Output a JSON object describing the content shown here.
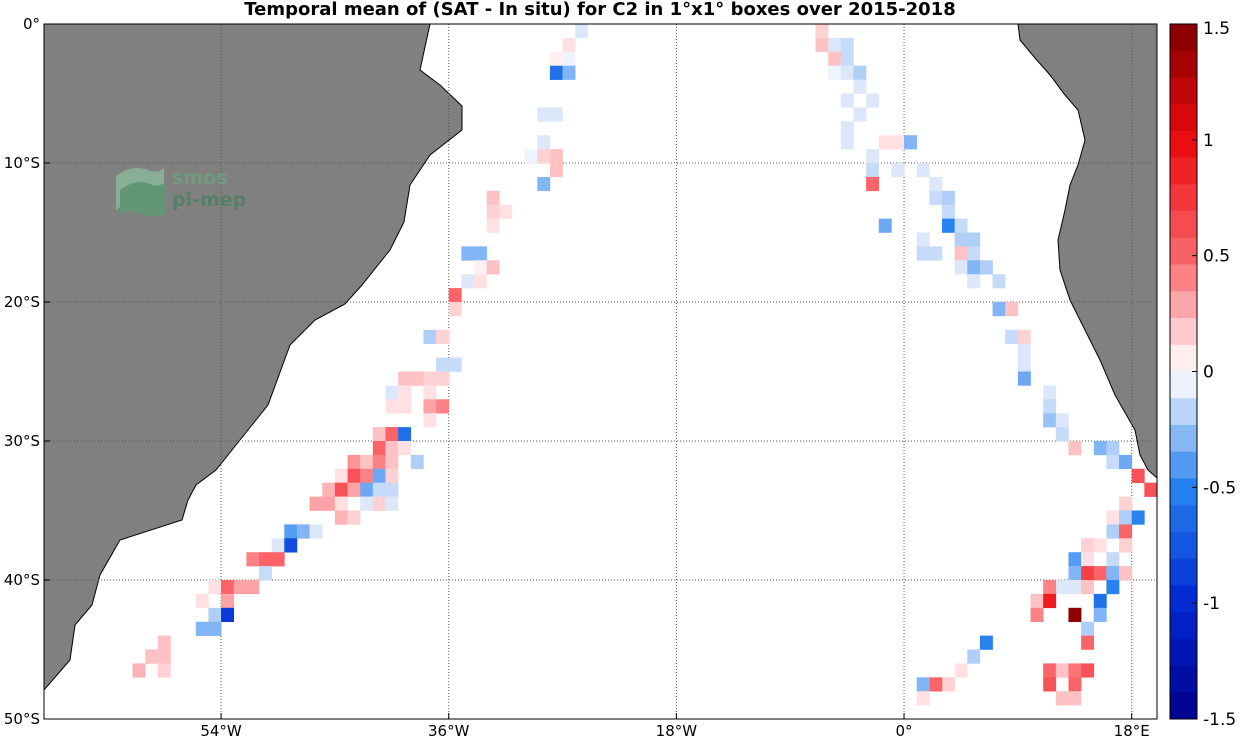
{
  "title": "Temporal mean of (SAT - In situ) for C2 in 1°x1° boxes over 2015-2018",
  "map": {
    "lon_range": [
      -68,
      20
    ],
    "lat_range": [
      -50,
      0
    ],
    "lon_ticks": [
      {
        "value": -54,
        "label": "54°W"
      },
      {
        "value": -36,
        "label": "36°W"
      },
      {
        "value": -18,
        "label": "18°W"
      },
      {
        "value": 0,
        "label": "0°"
      },
      {
        "value": 18,
        "label": "18°E"
      }
    ],
    "lat_ticks": [
      {
        "value": 0,
        "label": "0°"
      },
      {
        "value": -10,
        "label": "10°S"
      },
      {
        "value": -20,
        "label": "20°S"
      },
      {
        "value": -30,
        "label": "30°S"
      },
      {
        "value": -40,
        "label": "40°S"
      },
      {
        "value": -50,
        "label": "50°S"
      }
    ],
    "grid": "dotted",
    "land_color": "#808080"
  },
  "logo": {
    "line1": "smos",
    "line2": "pi-mep"
  },
  "colorbar": {
    "range": [
      -1.5,
      1.5
    ],
    "ticks": [
      {
        "value": 1.5,
        "label": "1.5"
      },
      {
        "value": 1,
        "label": "1"
      },
      {
        "value": 0.5,
        "label": "0.5"
      },
      {
        "value": 0,
        "label": "0"
      },
      {
        "value": -0.5,
        "label": "-0.5"
      },
      {
        "value": -1,
        "label": "-1"
      },
      {
        "value": -1.5,
        "label": "-1.5"
      }
    ]
  },
  "chart_data": {
    "type": "heatmap",
    "title": "Temporal mean of (SAT - In situ) for C2 in 1°x1° boxes over 2015-2018",
    "colorbar_range": [
      -1.5,
      1.5
    ],
    "cells": [
      [
        -26.5,
        -1.5,
        0.1
      ],
      [
        -25.5,
        -0.5,
        -0.1
      ],
      [
        -27.5,
        -2.5,
        0.05
      ],
      [
        -26.5,
        -2.5,
        -0.05
      ],
      [
        -27.5,
        -3.5,
        -0.6
      ],
      [
        -26.5,
        -3.5,
        -0.3
      ],
      [
        -28.5,
        -6.5,
        -0.1
      ],
      [
        -27.5,
        -6.5,
        -0.1
      ],
      [
        -28.5,
        -8.5,
        -0.1
      ],
      [
        -29.5,
        -9.5,
        -0.05
      ],
      [
        -28.5,
        -9.5,
        0.15
      ],
      [
        -27.5,
        -9.5,
        0.2
      ],
      [
        -27.5,
        -10.5,
        0.2
      ],
      [
        -28.5,
        -11.5,
        -0.3
      ],
      [
        -32.5,
        -12.5,
        0.2
      ],
      [
        -32.5,
        -13.5,
        0.15
      ],
      [
        -31.5,
        -13.5,
        0.1
      ],
      [
        -32.5,
        -14.5,
        0.1
      ],
      [
        -34.5,
        -16.5,
        -0.3
      ],
      [
        -33.5,
        -16.5,
        -0.3
      ],
      [
        -33.5,
        -17.5,
        0.05
      ],
      [
        -32.5,
        -17.5,
        0.2
      ],
      [
        -34.5,
        -18.5,
        -0.1
      ],
      [
        -33.5,
        -18.5,
        0.1
      ],
      [
        -35.5,
        -19.5,
        0.5
      ],
      [
        -35.5,
        -20.5,
        0.15
      ],
      [
        -37.5,
        -22.5,
        -0.2
      ],
      [
        -36.5,
        -22.5,
        0.15
      ],
      [
        -36.5,
        -24.5,
        -0.15
      ],
      [
        -35.5,
        -24.5,
        -0.15
      ],
      [
        -39.5,
        -25.5,
        0.2
      ],
      [
        -38.5,
        -25.5,
        0.2
      ],
      [
        -37.5,
        -25.5,
        0.15
      ],
      [
        -36.5,
        -25.5,
        0.15
      ],
      [
        -40.5,
        -26.5,
        -0.1
      ],
      [
        -39.5,
        -26.5,
        0.1
      ],
      [
        -40.5,
        -27.5,
        0.1
      ],
      [
        -39.5,
        -27.5,
        0.1
      ],
      [
        -37.5,
        -26.5,
        0.1
      ],
      [
        -37.5,
        -27.5,
        0.3
      ],
      [
        -36.5,
        -27.5,
        0.4
      ],
      [
        -37.5,
        -28.5,
        0.1
      ],
      [
        -41.5,
        -29.5,
        0.2
      ],
      [
        -40.5,
        -29.5,
        0.5
      ],
      [
        -39.5,
        -29.5,
        -0.6
      ],
      [
        -41.5,
        -30.5,
        0.5
      ],
      [
        -40.5,
        -30.5,
        0.2
      ],
      [
        -39.5,
        -30.5,
        0.1
      ],
      [
        -43.5,
        -31.5,
        0.35
      ],
      [
        -42.5,
        -31.5,
        0.2
      ],
      [
        -41.5,
        -31.5,
        0.4
      ],
      [
        -40.5,
        -31.5,
        0.2
      ],
      [
        -38.5,
        -31.5,
        -0.2
      ],
      [
        -44.5,
        -32.5,
        0.1
      ],
      [
        -43.5,
        -32.5,
        0.6
      ],
      [
        -42.5,
        -32.5,
        0.4
      ],
      [
        -41.5,
        -32.5,
        -0.35
      ],
      [
        -40.5,
        -32.5,
        0.15
      ],
      [
        -45.5,
        -33.5,
        0.25
      ],
      [
        -44.5,
        -33.5,
        0.6
      ],
      [
        -43.5,
        -33.5,
        0.3
      ],
      [
        -42.5,
        -33.5,
        -0.35
      ],
      [
        -41.5,
        -33.5,
        -0.15
      ],
      [
        -40.5,
        -33.5,
        -0.15
      ],
      [
        -46.5,
        -34.5,
        0.3
      ],
      [
        -45.5,
        -34.5,
        0.3
      ],
      [
        -44.5,
        -34.5,
        0.1
      ],
      [
        -42.5,
        -34.5,
        -0.1
      ],
      [
        -41.5,
        -34.5,
        0.15
      ],
      [
        -40.5,
        -34.5,
        -0.1
      ],
      [
        -44.5,
        -35.5,
        0.25
      ],
      [
        -43.5,
        -35.5,
        0.15
      ],
      [
        -48.5,
        -36.5,
        -0.4
      ],
      [
        -47.5,
        -36.5,
        -0.3
      ],
      [
        -46.5,
        -36.5,
        -0.1
      ],
      [
        -49.5,
        -37.5,
        -0.1
      ],
      [
        -48.5,
        -37.5,
        -0.8
      ],
      [
        -51.5,
        -38.5,
        0.4
      ],
      [
        -50.5,
        -38.5,
        0.5
      ],
      [
        -49.5,
        -38.5,
        0.5
      ],
      [
        -50.5,
        -39.5,
        -0.15
      ],
      [
        -54.5,
        -40.5,
        0.1
      ],
      [
        -53.5,
        -40.5,
        0.5
      ],
      [
        -52.5,
        -40.5,
        0.3
      ],
      [
        -51.5,
        -40.5,
        0.3
      ],
      [
        -55.5,
        -41.5,
        0.1
      ],
      [
        -53.5,
        -41.5,
        0.3
      ],
      [
        -54.5,
        -42.5,
        -0.2
      ],
      [
        -53.5,
        -42.5,
        -0.9
      ],
      [
        -55.5,
        -43.5,
        -0.3
      ],
      [
        -54.5,
        -43.5,
        -0.3
      ],
      [
        -58.5,
        -44.5,
        0.2
      ],
      [
        -58.5,
        -45.5,
        0.2
      ],
      [
        -59.5,
        -45.5,
        0.2
      ],
      [
        -58.5,
        -46.5,
        0.15
      ],
      [
        -60.5,
        -46.5,
        0.25
      ],
      [
        -6.5,
        -0.5,
        0.15
      ],
      [
        -6.5,
        -1.5,
        0.2
      ],
      [
        -5.5,
        -1.5,
        -0.1
      ],
      [
        -4.5,
        -1.5,
        -0.15
      ],
      [
        -5.5,
        -2.5,
        0.2
      ],
      [
        -4.5,
        -2.5,
        -0.15
      ],
      [
        -5.5,
        -3.5,
        -0.05
      ],
      [
        -4.5,
        -3.5,
        -0.1
      ],
      [
        -3.5,
        -3.5,
        -0.2
      ],
      [
        -3.5,
        -4.5,
        -0.1
      ],
      [
        -2.5,
        -5.5,
        -0.1
      ],
      [
        -4.5,
        -5.5,
        -0.1
      ],
      [
        -3.5,
        -6.5,
        -0.1
      ],
      [
        -4.5,
        -7.5,
        -0.1
      ],
      [
        -4.5,
        -8.5,
        -0.1
      ],
      [
        -0.5,
        -8.5,
        0.1
      ],
      [
        -1.5,
        -8.5,
        0.1
      ],
      [
        0.5,
        -8.5,
        -0.3
      ],
      [
        -2.5,
        -9.5,
        -0.1
      ],
      [
        -2.5,
        -10.5,
        -0.15
      ],
      [
        -2.5,
        -11.5,
        0.5
      ],
      [
        -0.5,
        -10.5,
        -0.1
      ],
      [
        1.5,
        -10.5,
        -0.1
      ],
      [
        2.5,
        -11.5,
        -0.1
      ],
      [
        2.5,
        -12.5,
        -0.15
      ],
      [
        3.5,
        -12.5,
        -0.2
      ],
      [
        -1.5,
        -14.5,
        -0.35
      ],
      [
        3.5,
        -13.5,
        -0.15
      ],
      [
        3.5,
        -14.5,
        -0.5
      ],
      [
        4.5,
        -14.5,
        -0.15
      ],
      [
        4.5,
        -15.5,
        -0.2
      ],
      [
        5.5,
        -15.5,
        -0.2
      ],
      [
        1.5,
        -15.5,
        -0.1
      ],
      [
        1.5,
        -16.5,
        -0.15
      ],
      [
        2.5,
        -16.5,
        -0.15
      ],
      [
        4.5,
        -16.5,
        0.2
      ],
      [
        5.5,
        -16.5,
        -0.15
      ],
      [
        4.5,
        -17.5,
        -0.1
      ],
      [
        5.5,
        -17.5,
        -0.3
      ],
      [
        5.5,
        -18.5,
        -0.1
      ],
      [
        6.5,
        -17.5,
        -0.2
      ],
      [
        7.5,
        -18.5,
        -0.15
      ],
      [
        7.5,
        -20.5,
        -0.3
      ],
      [
        8.5,
        -20.5,
        0.2
      ],
      [
        8.5,
        -22.5,
        -0.15
      ],
      [
        9.5,
        -22.5,
        0.15
      ],
      [
        9.5,
        -23.5,
        -0.1
      ],
      [
        9.5,
        -24.5,
        -0.1
      ],
      [
        9.5,
        -25.5,
        -0.35
      ],
      [
        11.5,
        -26.5,
        -0.1
      ],
      [
        11.5,
        -27.5,
        -0.15
      ],
      [
        11.5,
        -28.5,
        -0.25
      ],
      [
        12.5,
        -28.5,
        -0.1
      ],
      [
        12.5,
        -29.5,
        -0.15
      ],
      [
        13.5,
        -30.5,
        0.2
      ],
      [
        15.5,
        -30.5,
        -0.3
      ],
      [
        16.5,
        -30.5,
        -0.2
      ],
      [
        16.5,
        -31.5,
        -0.15
      ],
      [
        17.5,
        -31.5,
        -0.35
      ],
      [
        18.5,
        -32.5,
        0.6
      ],
      [
        19.5,
        -33.5,
        0.6
      ],
      [
        17.5,
        -34.5,
        0.15
      ],
      [
        16.5,
        -35.5,
        0.1
      ],
      [
        17.5,
        -35.5,
        -0.2
      ],
      [
        18.5,
        -35.5,
        -0.5
      ],
      [
        16.5,
        -36.5,
        -0.2
      ],
      [
        17.5,
        -36.5,
        0.5
      ],
      [
        14.5,
        -37.5,
        0.15
      ],
      [
        15.5,
        -37.5,
        0.1
      ],
      [
        17.5,
        -37.5,
        0.15
      ],
      [
        13.5,
        -38.5,
        -0.4
      ],
      [
        14.5,
        -38.5,
        0.1
      ],
      [
        16.5,
        -38.5,
        -0.15
      ],
      [
        13.5,
        -39.5,
        -0.3
      ],
      [
        14.5,
        -39.5,
        0.7
      ],
      [
        15.5,
        -39.5,
        0.5
      ],
      [
        16.5,
        -39.5,
        -0.3
      ],
      [
        17.5,
        -39.5,
        0.2
      ],
      [
        12.5,
        -40.5,
        -0.1
      ],
      [
        11.5,
        -40.5,
        0.4
      ],
      [
        13.5,
        -40.5,
        -0.1
      ],
      [
        14.5,
        -40.5,
        0.2
      ],
      [
        16.5,
        -40.5,
        -0.5
      ],
      [
        10.5,
        -41.5,
        0.2
      ],
      [
        11.5,
        -41.5,
        0.9
      ],
      [
        15.5,
        -41.5,
        -0.6
      ],
      [
        10.5,
        -42.5,
        0.4
      ],
      [
        13.5,
        -42.5,
        1.45
      ],
      [
        15.5,
        -42.5,
        -0.3
      ],
      [
        14.5,
        -43.5,
        -0.2
      ],
      [
        14.5,
        -44.5,
        0.5
      ],
      [
        6.5,
        -44.5,
        -0.5
      ],
      [
        5.5,
        -45.5,
        -0.2
      ],
      [
        4.5,
        -46.5,
        0.1
      ],
      [
        3.5,
        -47.5,
        0.15
      ],
      [
        2.5,
        -47.5,
        0.5
      ],
      [
        1.5,
        -47.5,
        -0.3
      ],
      [
        1.5,
        -48.5,
        0.1
      ],
      [
        11.5,
        -46.5,
        0.5
      ],
      [
        12.5,
        -46.5,
        0.2
      ],
      [
        13.5,
        -46.5,
        0.45
      ],
      [
        14.5,
        -46.5,
        0.6
      ],
      [
        11.5,
        -47.5,
        0.6
      ],
      [
        13.5,
        -47.5,
        0.5
      ],
      [
        12.5,
        -48.5,
        0.2
      ],
      [
        13.5,
        -48.5,
        0.2
      ]
    ]
  }
}
